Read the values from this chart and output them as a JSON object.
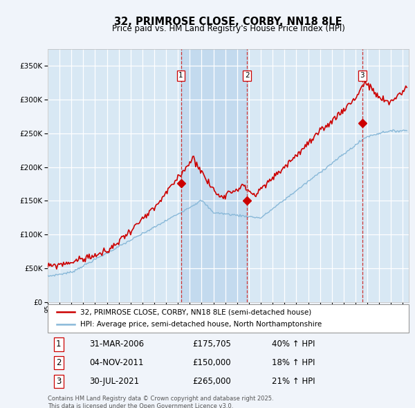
{
  "title": "32, PRIMROSE CLOSE, CORBY, NN18 8LE",
  "subtitle": "Price paid vs. HM Land Registry's House Price Index (HPI)",
  "legend_property": "32, PRIMROSE CLOSE, CORBY, NN18 8LE (semi-detached house)",
  "legend_hpi": "HPI: Average price, semi-detached house, North Northamptonshire",
  "footer": "Contains HM Land Registry data © Crown copyright and database right 2025.\nThis data is licensed under the Open Government Licence v3.0.",
  "transactions": [
    {
      "num": 1,
      "date": "31-MAR-2006",
      "price": "£175,705",
      "pct": "40% ↑ HPI",
      "year_x": 2006.25,
      "price_y": 175705
    },
    {
      "num": 2,
      "date": "04-NOV-2011",
      "price": "£150,000",
      "pct": "18% ↑ HPI",
      "year_x": 2011.84,
      "price_y": 150000
    },
    {
      "num": 3,
      "date": "30-JUL-2021",
      "price": "£265,000",
      "pct": "21% ↑ HPI",
      "year_x": 2021.58,
      "price_y": 265000
    }
  ],
  "ylim": [
    0,
    375000
  ],
  "xlim_start": 1995.0,
  "xlim_end": 2025.5,
  "bg_color": "#f0f4fa",
  "plot_bg": "#d8e8f4",
  "grid_color": "#ffffff",
  "red_color": "#cc0000",
  "blue_color": "#88b8d8",
  "shade_color": "#c0d8ee",
  "vline_color": "#cc3333"
}
